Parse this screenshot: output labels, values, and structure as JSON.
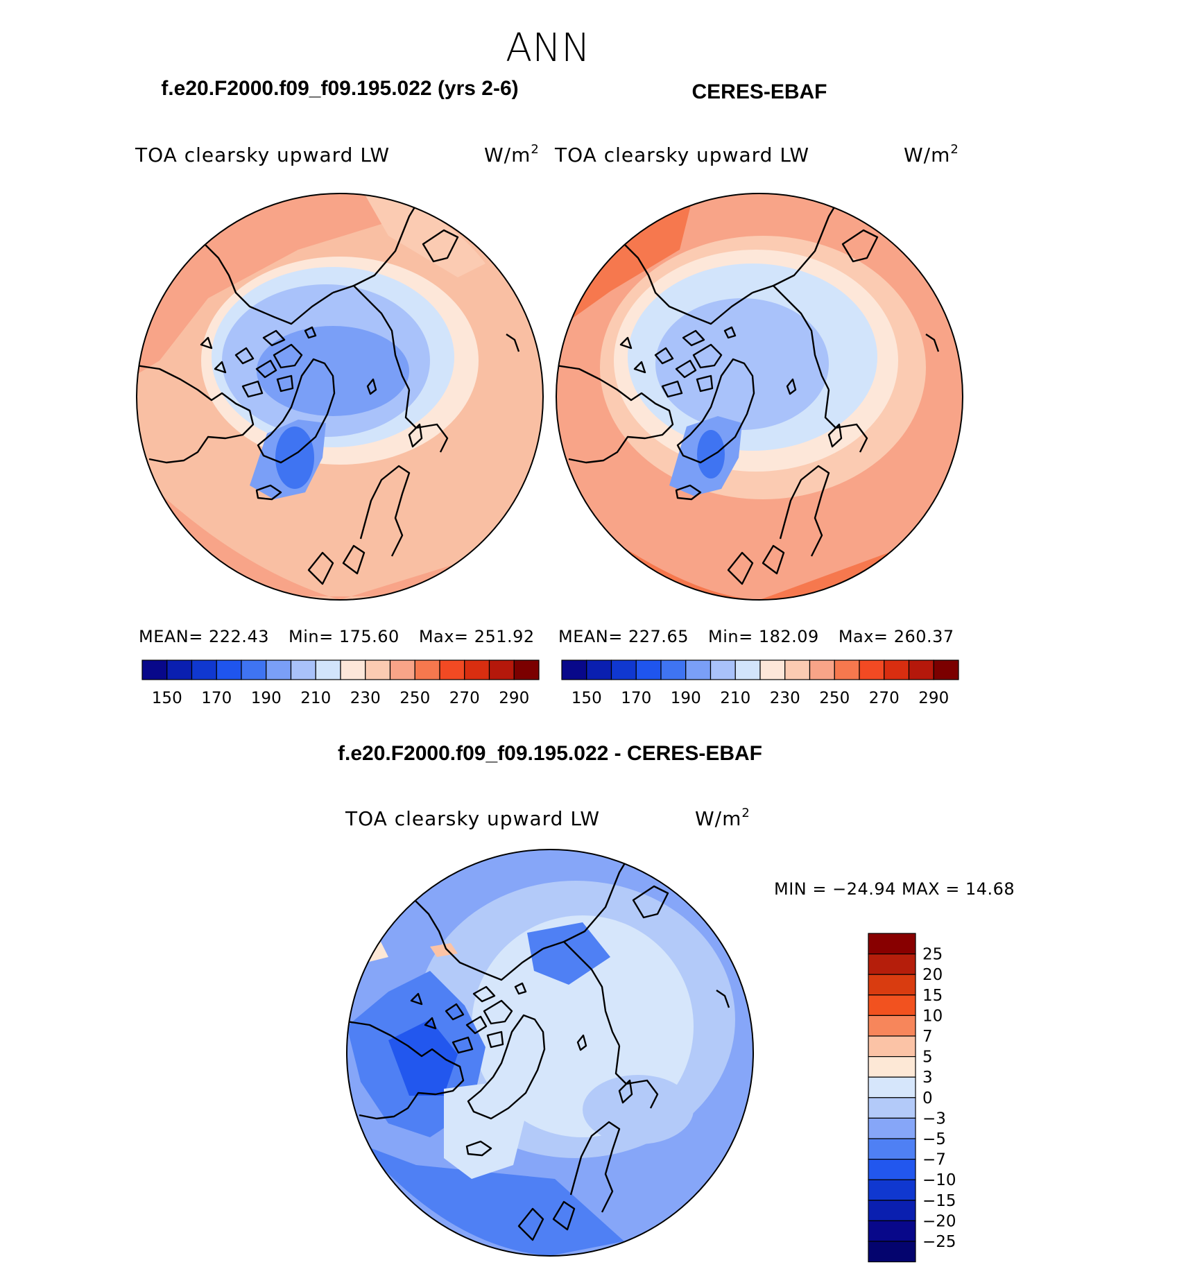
{
  "season": "ANN",
  "colors": {
    "abs_palette": [
      "#08088a",
      "#0a1fb0",
      "#1038d0",
      "#1f55ee",
      "#3f74f2",
      "#7a9ff7",
      "#a9c2fa",
      "#d2e4fb",
      "#fde7d9",
      "#fbcbb2",
      "#f8a488",
      "#f6784e",
      "#f24a23",
      "#d92e10",
      "#b5180b",
      "#7b0000"
    ],
    "diff_palette": [
      "#08088a",
      "#0a1fb0",
      "#1038d0",
      "#2257ee",
      "#4f80f4",
      "#86a6f8",
      "#b3caf9",
      "#d6e6fb",
      "#fde8d6",
      "#fbc3a6",
      "#f7865b",
      "#f2521f",
      "#d93c10",
      "#b51e0b",
      "#880000"
    ]
  },
  "panels": [
    {
      "case_title": "f.e20.F2000.f09_f09.195.022 (yrs 2-6)",
      "variable": "TOA clearsky upward LW",
      "units": "W/m",
      "units_sup": "2",
      "stats": {
        "mean_label": "MEAN=",
        "mean": "222.43",
        "min_label": "Min=",
        "min": "175.60",
        "max_label": "Max=",
        "max": "251.92"
      },
      "colorbar_ticks": [
        "150",
        "170",
        "190",
        "210",
        "230",
        "250",
        "270",
        "290"
      ]
    },
    {
      "case_title": "CERES-EBAF",
      "variable": "TOA clearsky upward LW",
      "units": "W/m",
      "units_sup": "2",
      "stats": {
        "mean_label": "MEAN=",
        "mean": "227.65",
        "min_label": "Min=",
        "min": "182.09",
        "max_label": "Max=",
        "max": "260.37"
      },
      "colorbar_ticks": [
        "150",
        "170",
        "190",
        "210",
        "230",
        "250",
        "270",
        "290"
      ]
    }
  ],
  "diff": {
    "case_title": "f.e20.F2000.f09_f09.195.022 - CERES-EBAF",
    "variable": "TOA clearsky upward LW",
    "units": "W/m",
    "units_sup": "2",
    "minmax": "MIN = −24.94 MAX =   14.68",
    "colorbar_labels": [
      "25",
      "20",
      "15",
      "10",
      "7",
      "5",
      "3",
      "0",
      "−3",
      "−5",
      "−7",
      "−10",
      "−15",
      "−20",
      "−25"
    ]
  }
}
